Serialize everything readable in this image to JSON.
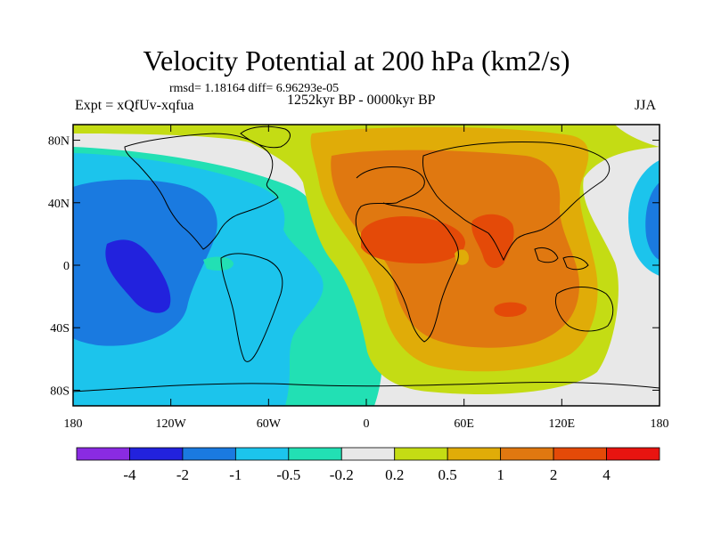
{
  "title": "Velocity Potential at 200 hPa (km2/s)",
  "stats": "rmsd= 1.18164 diff= 6.96293e-05",
  "experiment": "Expt = xQfUv-xqfua",
  "period": "1252kyr BP - 0000kyr BP",
  "season": "JJA",
  "lat_ticks": [
    {
      "label": "80N",
      "lat": 80
    },
    {
      "label": "40N",
      "lat": 40
    },
    {
      "label": "0",
      "lat": 0
    },
    {
      "label": "40S",
      "lat": -40
    },
    {
      "label": "80S",
      "lat": -80
    }
  ],
  "lon_ticks": [
    {
      "label": "180",
      "lon": -180
    },
    {
      "label": "120W",
      "lon": -120
    },
    {
      "label": "60W",
      "lon": -60
    },
    {
      "label": "0",
      "lon": 0
    },
    {
      "label": "60E",
      "lon": 60
    },
    {
      "label": "120E",
      "lon": 120
    },
    {
      "label": "180",
      "lon": 180
    }
  ],
  "colorbar": {
    "colors": [
      "#8a2be2",
      "#2222dd",
      "#1a7ae0",
      "#1cc4ec",
      "#22e0b4",
      "#e8e8e8",
      "#c4dc14",
      "#e0ac08",
      "#e07810",
      "#e44a08",
      "#e81410"
    ],
    "labels": [
      "-4",
      "-2",
      "-1",
      "-0.5",
      "-0.2",
      "0.2",
      "0.5",
      "1",
      "2",
      "4"
    ]
  },
  "colors": {
    "lvl_neg2": "#2222dd",
    "lvl_neg1": "#1a7ae0",
    "lvl_neg05": "#1cc4ec",
    "lvl_neg02": "#22e0b4",
    "lvl_zero": "#e8e8e8",
    "lvl_pos02": "#c4dc14",
    "lvl_pos05": "#e0ac08",
    "lvl_pos1": "#e07810",
    "lvl_pos2": "#e44a08"
  }
}
